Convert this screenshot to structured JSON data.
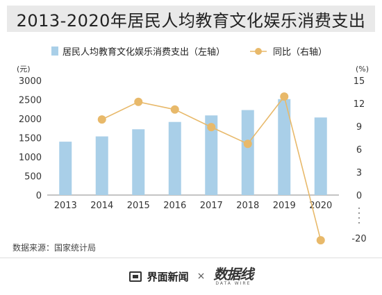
{
  "title": "2013-2020年居民人均教育文化娱乐消费支出",
  "source": "数据来源：国家统计局",
  "footer": {
    "brand": "界面新闻",
    "times": "×",
    "logo_cn": "数据线",
    "logo_en": "DATA WIRE"
  },
  "chart_data": {
    "type": "bar",
    "categories": [
      "2013",
      "2014",
      "2015",
      "2016",
      "2017",
      "2018",
      "2019",
      "2020"
    ],
    "series": [
      {
        "name": "居民人均教育文化娱乐消费支出（左轴）",
        "type": "bar",
        "axis": "left",
        "color": "#a9cfe8",
        "values": [
          1398,
          1536,
          1723,
          1915,
          2086,
          2226,
          2513,
          2032
        ]
      },
      {
        "name": "同比（右轴）",
        "type": "line",
        "axis": "right",
        "color": "#e8b96a",
        "values": [
          null,
          9.9,
          12.2,
          11.2,
          8.9,
          6.7,
          12.9,
          -19.1
        ]
      }
    ],
    "left_axis": {
      "unit": "(元)",
      "min": 0,
      "max": 3000,
      "ticks": [
        0,
        500,
        1000,
        1500,
        2000,
        2500,
        3000
      ]
    },
    "right_axis": {
      "unit": "(%)",
      "min": -21,
      "max": 15,
      "ticks": [
        15,
        12,
        9,
        6,
        3,
        0,
        -20
      ],
      "break": true
    },
    "grid": false,
    "legend_position": "top"
  }
}
